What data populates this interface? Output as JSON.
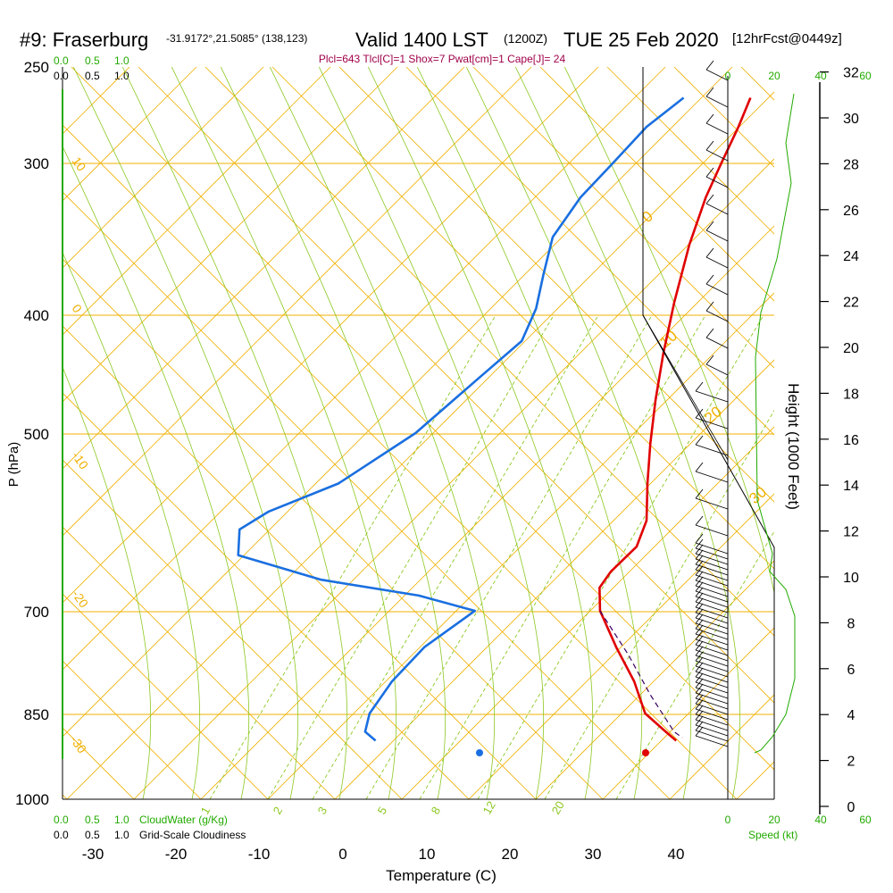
{
  "header": {
    "station": "#9: Fraserburg",
    "coords": "-31.9172°,21.5085° (138,123)",
    "valid": "Valid 1400 LST",
    "utc": "(1200Z)",
    "date": "TUE 25 Feb 2020",
    "forecast": "[12hrFcst@0449z]",
    "indices": "Plcl=643 Tlcl[C]=1 Shox=7 Pwat[cm]=1 Cape[J]= 24"
  },
  "colors": {
    "temperature": "#e00000",
    "dewpoint": "#1a6fe0",
    "isotherm_adiabat": "#f0b000",
    "moist": "#8cc820",
    "green_label": "#22aa00",
    "indices": "#a0004a"
  },
  "chart_data": {
    "type": "line",
    "title": "",
    "xlabel": "Temperature (C)",
    "ylabel": "P (hPa)",
    "y2label": "Height (1000 Feet)",
    "x_ticks": [
      "-30",
      "-20",
      "-10",
      "0",
      "10",
      "20",
      "30",
      "40"
    ],
    "p_ticks": [
      "250",
      "300",
      "400",
      "500",
      "700",
      "850",
      "1000"
    ],
    "height_ticks": [
      "0",
      "2",
      "4",
      "6",
      "8",
      "10",
      "12",
      "14",
      "16",
      "18",
      "20",
      "22",
      "24",
      "26",
      "28",
      "30",
      "32"
    ],
    "skew_labels": [
      "10",
      "0",
      "-10",
      "-20",
      "-30"
    ],
    "dry_labels": [
      "0",
      "10",
      "20",
      "30"
    ],
    "mixing_labels": [
      "1",
      "2",
      "3",
      "5",
      "8",
      "12",
      "20"
    ],
    "cloud_scale": [
      "0.0",
      "0.5",
      "1.0"
    ],
    "cloud_labels": [
      "CloudWater (g/Kg)",
      "Grid-Scale Cloudiness"
    ],
    "speed_ticks": [
      "0",
      "20",
      "40",
      "60"
    ],
    "speed_label": "Speed (kt)",
    "series": [
      {
        "name": "Temperature",
        "points": [
          [
            -10,
            265
          ],
          [
            -9,
            280
          ],
          [
            -8,
            300
          ],
          [
            -7,
            320
          ],
          [
            -5,
            350
          ],
          [
            -2,
            390
          ],
          [
            1,
            430
          ],
          [
            4,
            470
          ],
          [
            7,
            510
          ],
          [
            10,
            550
          ],
          [
            13,
            590
          ],
          [
            14,
            620
          ],
          [
            13,
            650
          ],
          [
            13,
            670
          ],
          [
            15,
            700
          ],
          [
            20,
            750
          ],
          [
            25,
            800
          ],
          [
            29,
            850
          ],
          [
            33,
            880
          ],
          [
            35,
            895
          ]
        ]
      },
      {
        "name": "Dewpoint",
        "points": [
          [
            -18,
            265
          ],
          [
            -20,
            280
          ],
          [
            -21,
            300
          ],
          [
            -22,
            320
          ],
          [
            -22,
            345
          ],
          [
            -20,
            370
          ],
          [
            -18,
            395
          ],
          [
            -17,
            420
          ],
          [
            -19,
            450
          ],
          [
            -22,
            500
          ],
          [
            -27,
            550
          ],
          [
            -33,
            580
          ],
          [
            -35,
            600
          ],
          [
            -33,
            630
          ],
          [
            -21,
            660
          ],
          [
            -8,
            680
          ],
          [
            0,
            700
          ],
          [
            -3,
            750
          ],
          [
            -4,
            800
          ],
          [
            -4,
            850
          ],
          [
            -3,
            880
          ],
          [
            -1,
            895
          ]
        ]
      }
    ],
    "surface_temperature": 36,
    "surface_dewpoint": 16
  }
}
